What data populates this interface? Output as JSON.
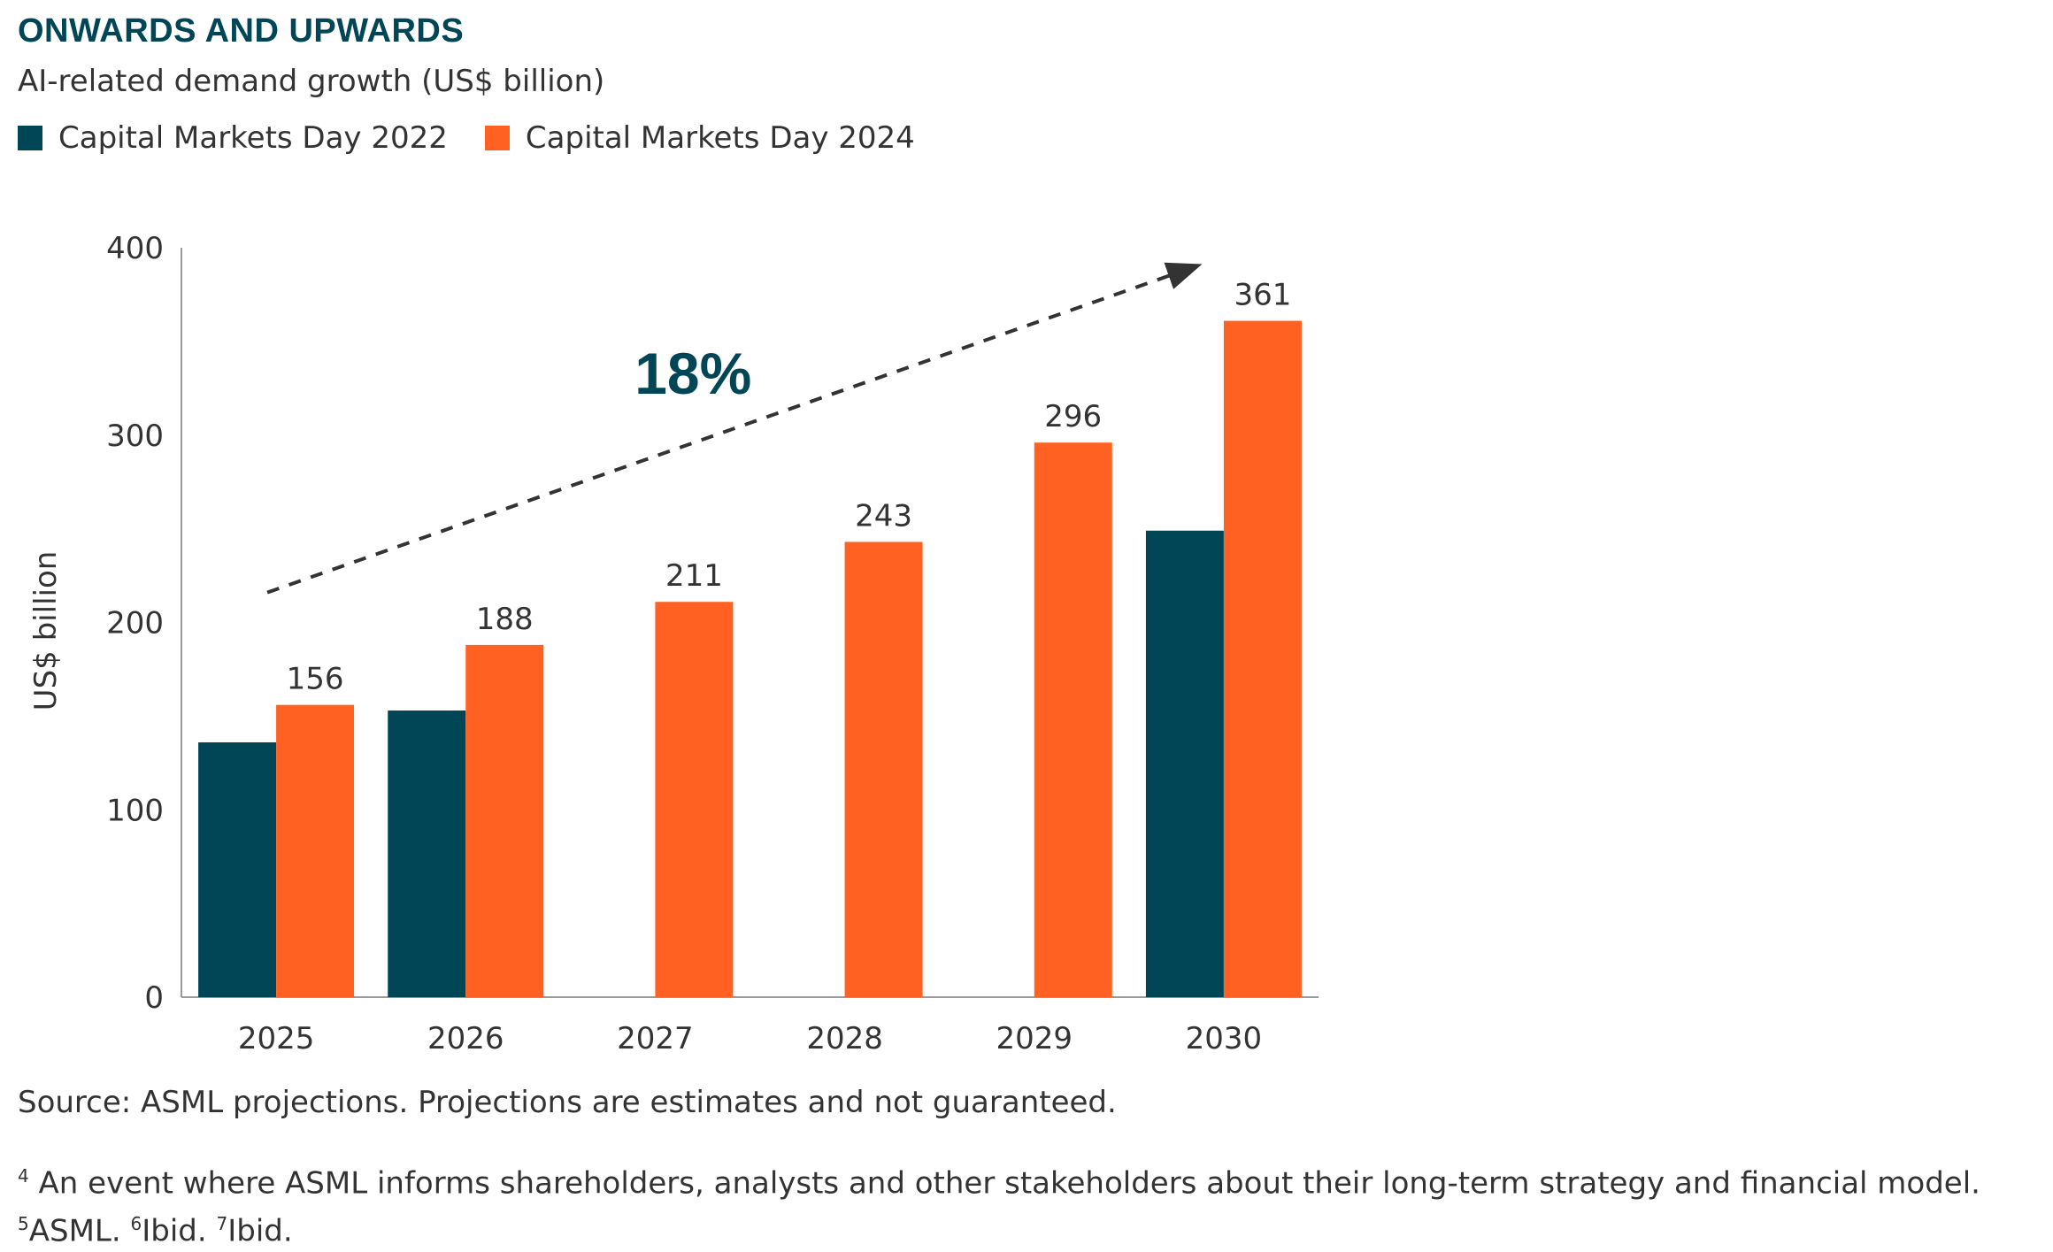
{
  "header": {
    "title": "ONWARDS AND UPWARDS",
    "subtitle": "AI-related demand growth (US$ billion)"
  },
  "colors": {
    "cmd2022": "#004657",
    "cmd2024": "#FF6122",
    "title": "#004657",
    "text": "#333333"
  },
  "chart_data": {
    "type": "bar",
    "categories": [
      "2025",
      "2026",
      "2027",
      "2028",
      "2029",
      "2030"
    ],
    "series": [
      {
        "name": "Capital Markets Day 2022",
        "values": [
          136,
          153,
          null,
          null,
          null,
          249
        ]
      },
      {
        "name": "Capital Markets Day 2024",
        "values": [
          156,
          188,
          211,
          243,
          296,
          361
        ]
      }
    ],
    "data_labels": [
      "156",
      "188",
      "211",
      "243",
      "296",
      "361"
    ],
    "title": "",
    "xlabel": "",
    "ylabel": "US$ billion",
    "ylim": [
      0,
      400
    ],
    "yticks": [
      0,
      100,
      200,
      300,
      400
    ],
    "grid": false,
    "legend_position": "top-left",
    "annotation": {
      "text": "18%",
      "kind": "dashed growth arrow",
      "from_value": 216,
      "to_value": 390
    }
  },
  "footer": {
    "source": "Source: ASML projections. Projections are estimates and not guaranteed.",
    "footnote1": {
      "marker": "4",
      "text": "An event where ASML informs shareholders, analysts and other stakeholders about their long-term strategy and financial model."
    },
    "footnote2": [
      {
        "marker": "5",
        "text": "ASML. "
      },
      {
        "marker": "6",
        "text": "Ibid. "
      },
      {
        "marker": "7",
        "text": "Ibid."
      }
    ]
  }
}
